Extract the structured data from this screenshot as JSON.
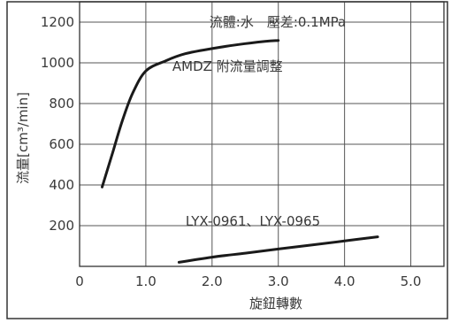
{
  "chart_data": {
    "type": "line",
    "title": "流體:水　壓差:0.1MPa",
    "xlabel": "旋鈕轉數",
    "ylabel": "流量[cm³/min]",
    "xlim": [
      0,
      5.5
    ],
    "ylim": [
      0,
      1300
    ],
    "xticks": [
      0,
      1.0,
      2.0,
      3.0,
      4.0,
      5.0
    ],
    "xtick_labels": [
      "0",
      "1.0",
      "2.0",
      "3.0",
      "4.0",
      "5.0"
    ],
    "yticks": [
      200,
      400,
      600,
      800,
      1000,
      1200
    ],
    "ytick_labels": [
      "200",
      "400",
      "600",
      "800",
      "1000",
      "1200"
    ],
    "grid": true,
    "series": [
      {
        "name": "AMDZ 附流量調整",
        "color": "#1a1a1a",
        "label_at": [
          1.4,
          960
        ],
        "points": [
          [
            0.34,
            390
          ],
          [
            0.5,
            560
          ],
          [
            0.65,
            720
          ],
          [
            0.8,
            850
          ],
          [
            1.0,
            960
          ],
          [
            1.3,
            1010
          ],
          [
            1.6,
            1045
          ],
          [
            2.0,
            1070
          ],
          [
            2.4,
            1090
          ],
          [
            2.8,
            1105
          ],
          [
            3.0,
            1110
          ]
        ]
      },
      {
        "name": "LYX-0961、LYX-0965",
        "color": "#1a1a1a",
        "label_at": [
          1.6,
          200
        ],
        "points": [
          [
            1.5,
            20
          ],
          [
            2.0,
            45
          ],
          [
            2.5,
            65
          ],
          [
            3.0,
            85
          ],
          [
            3.5,
            105
          ],
          [
            4.0,
            125
          ],
          [
            4.5,
            145
          ]
        ]
      }
    ]
  }
}
